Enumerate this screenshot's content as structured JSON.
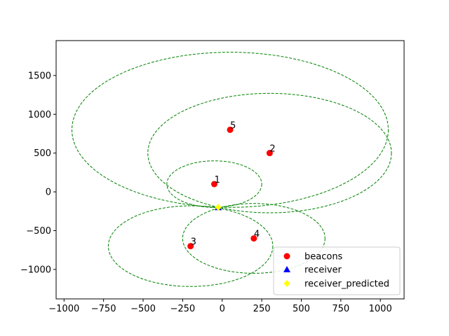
{
  "chart_data": {
    "type": "scatter",
    "xlim": [
      -1050,
      1150
    ],
    "ylim": [
      -1380,
      1950
    ],
    "xticks": [
      -1000,
      -750,
      -500,
      -250,
      0,
      250,
      500,
      750,
      1000
    ],
    "yticks": [
      -1000,
      -500,
      0,
      500,
      1000,
      1500
    ],
    "xtick_labels": [
      "−1000",
      "−750",
      "−500",
      "−250",
      "0",
      "250",
      "500",
      "750",
      "1000"
    ],
    "ytick_labels": [
      "−1000",
      "−500",
      "0",
      "500",
      "1000",
      "1500"
    ],
    "grid": false,
    "legend_position": "lower-right",
    "beacons": [
      {
        "label": "1",
        "x": -50,
        "y": 100,
        "r": 300
      },
      {
        "label": "2",
        "x": 300,
        "y": 500,
        "r": 770
      },
      {
        "label": "3",
        "x": -200,
        "y": -700,
        "r": 520
      },
      {
        "label": "4",
        "x": 200,
        "y": -600,
        "r": 450
      },
      {
        "label": "5",
        "x": 50,
        "y": 800,
        "r": 1000
      }
    ],
    "receiver": {
      "x": -25,
      "y": -200
    },
    "receiver_predicted": {
      "x": -25,
      "y": -200
    },
    "legend": [
      "beacons",
      "receiver",
      "receiver_predicted"
    ],
    "colors": {
      "beacon": "#ff0000",
      "receiver": "#0000ff",
      "receiver_predicted": "#ffff00",
      "circle": "#008000"
    }
  }
}
